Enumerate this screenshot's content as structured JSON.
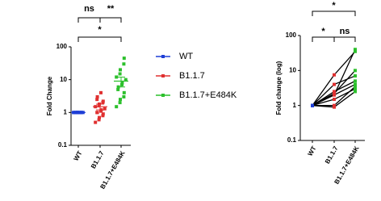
{
  "chart_data": [
    {
      "type": "scatter",
      "ylabel": "Fold Change",
      "log": true,
      "categories": [
        "WT",
        "B1.1.7",
        "B1.1.7+E484K"
      ],
      "series": [
        {
          "name": "WT",
          "color": "#1f3fd6",
          "values": [
            1,
            1,
            1,
            1,
            1,
            1,
            1,
            1,
            1,
            1,
            1,
            1,
            1,
            1
          ],
          "mean": 1,
          "error": 0
        },
        {
          "name": "B1.1.7",
          "color": "#e03030",
          "values": [
            0.5,
            0.6,
            0.7,
            0.8,
            0.9,
            1,
            1,
            1.1,
            1.2,
            1.3,
            1.5,
            1.6,
            1.8,
            2,
            2.2,
            2.5,
            3,
            4
          ],
          "mean": 1.5,
          "error": 0.3
        },
        {
          "name": "B1.1.7+E484K",
          "color": "#2cc02c",
          "values": [
            1.5,
            2,
            2.5,
            3,
            4,
            5,
            6,
            7,
            8,
            10,
            12,
            15,
            20,
            30,
            45
          ],
          "mean": 9,
          "error": 3
        }
      ],
      "annotations": [
        "ns",
        "**",
        "*"
      ],
      "ylim": [
        0.1,
        100
      ],
      "yticks": [
        0.1,
        1,
        10,
        100
      ]
    },
    {
      "type": "line",
      "ylabel": "Fold change (log)",
      "log": true,
      "categories": [
        "WT",
        "B1.1.7",
        "B1.1.7+E484K"
      ],
      "point_colors": [
        "#1f3fd6",
        "#e03030",
        "#2cc02c"
      ],
      "line_color": "#000000",
      "pairs": [
        [
          1,
          2,
          40
        ],
        [
          1,
          7.5,
          35
        ],
        [
          1,
          4,
          7
        ],
        [
          1,
          2.2,
          10
        ],
        [
          1,
          1,
          3.5
        ],
        [
          1,
          2,
          4
        ],
        [
          1,
          0.9,
          2.5
        ],
        [
          1,
          2.5,
          5
        ],
        [
          1,
          1.5,
          3
        ]
      ],
      "annotations": [
        "*",
        "*",
        "ns"
      ],
      "ylim": [
        0.1,
        100
      ],
      "yticks": [
        0.1,
        1,
        10,
        100
      ]
    }
  ]
}
